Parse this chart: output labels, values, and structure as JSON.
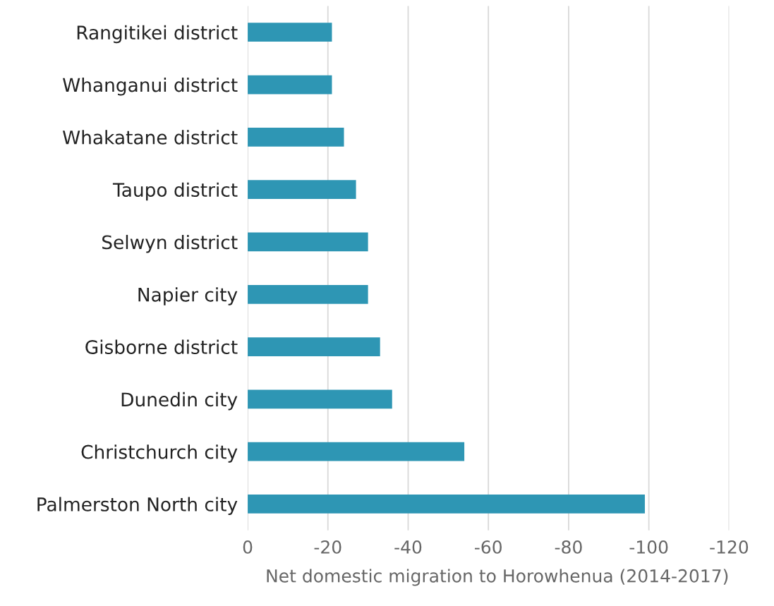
{
  "chart_data": {
    "type": "bar",
    "orientation": "horizontal",
    "xlabel": "Net domestic migration to Horowhenua (2014-2017)",
    "categories": [
      "Rangitikei district",
      "Whanganui district",
      "Whakatane district",
      "Taupo district",
      "Selwyn district",
      "Napier city",
      "Gisborne district",
      "Dunedin city",
      "Christchurch city",
      "Palmerston North city"
    ],
    "values": [
      -21,
      -21,
      -24,
      -27,
      -30,
      -30,
      -33,
      -36,
      -54,
      -99
    ],
    "color": "#2e96b4",
    "xlim": [
      0,
      -120
    ],
    "xticks": [
      0,
      -20,
      -40,
      -60,
      -80,
      -100,
      -120
    ],
    "grid": "x",
    "legend": false
  }
}
